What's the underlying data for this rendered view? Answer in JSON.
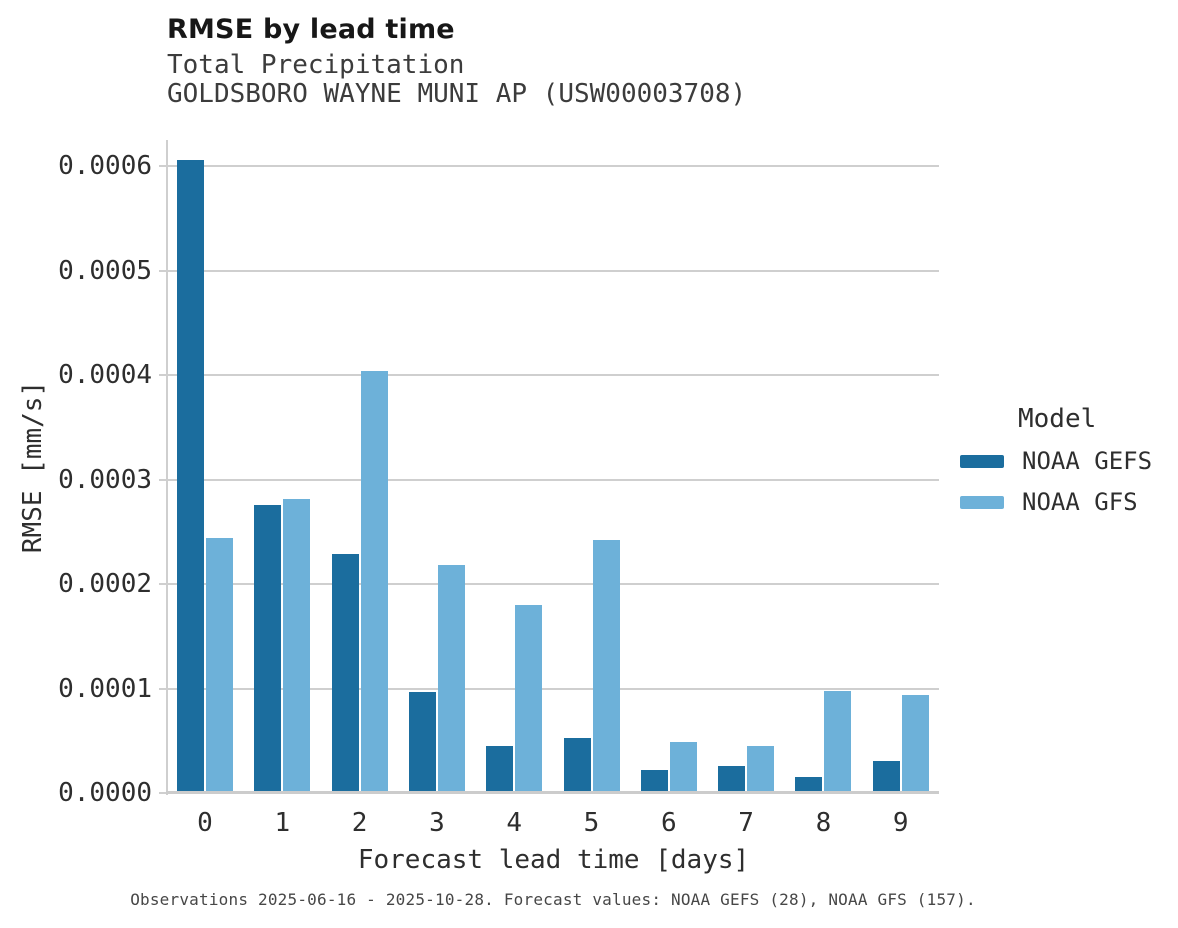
{
  "figure": {
    "title": "RMSE by lead time",
    "subtitle_line1": "Total Precipitation",
    "subtitle_line2": "GOLDSBORO WAYNE MUNI AP (USW00003708)",
    "caption": "Observations 2025-06-16 - 2025-10-28. Forecast values: NOAA GEFS (28), NOAA GFS (157)."
  },
  "legend": {
    "title": "Model",
    "entries": [
      {
        "label": "NOAA GEFS",
        "color": "#1b6d9e"
      },
      {
        "label": "NOAA GFS",
        "color": "#6db1d9"
      }
    ]
  },
  "colors": {
    "noaa_gefs": "#1b6d9e",
    "noaa_gfs": "#6db1d9",
    "gridline": "#cfcfcf",
    "text": "#2e2e2e"
  },
  "chart_data": {
    "type": "bar",
    "title": "RMSE by lead time",
    "subtitle": [
      "Total Precipitation",
      "GOLDSBORO WAYNE MUNI AP (USW00003708)"
    ],
    "xlabel": "Forecast lead time [days]",
    "ylabel": "RMSE [mm/s]",
    "categories": [
      "0",
      "1",
      "2",
      "3",
      "4",
      "5",
      "6",
      "7",
      "8",
      "9"
    ],
    "series": [
      {
        "name": "NOAA GEFS",
        "color": "#1b6d9e",
        "values": [
          0.000606,
          0.000276,
          0.000229,
          9.7e-05,
          4.5e-05,
          5.3e-05,
          2.2e-05,
          2.6e-05,
          1.5e-05,
          3.1e-05
        ]
      },
      {
        "name": "NOAA GFS",
        "color": "#6db1d9",
        "values": [
          0.000244,
          0.000281,
          0.000404,
          0.000218,
          0.00018,
          0.000242,
          4.9e-05,
          4.5e-05,
          9.8e-05,
          9.4e-05
        ]
      }
    ],
    "ylim": [
      0,
      0.000625
    ],
    "yticks": [
      0,
      0.0001,
      0.0002,
      0.0003,
      0.0004,
      0.0005,
      0.0006
    ],
    "ytick_labels": [
      "0.0000",
      "0.0001",
      "0.0002",
      "0.0003",
      "0.0004",
      "0.0005",
      "0.0006"
    ],
    "grid": "horizontal",
    "legend_position": "right",
    "legend_title": "Model"
  }
}
